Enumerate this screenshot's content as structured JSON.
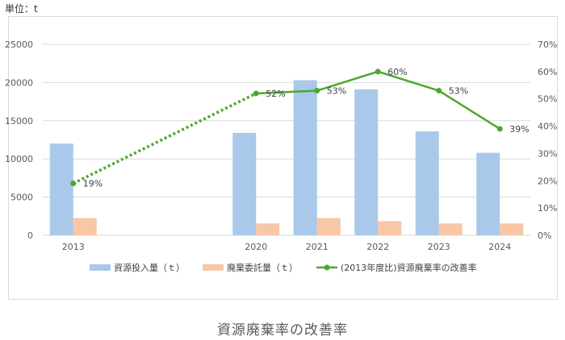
{
  "unit_label": "単位：t",
  "caption": "資源廃棄率の改善率",
  "colors": {
    "input": "#a9c8ea",
    "waste": "#f8c7a7",
    "rate": "#4ea72e",
    "grid": "#d9d9d9"
  },
  "chart_data": {
    "type": "bar",
    "categories": [
      "2013",
      "",
      "",
      "2020",
      "2021",
      "2022",
      "2023",
      "2024"
    ],
    "series": [
      {
        "name": "資源投入量（ｔ）",
        "kind": "bar",
        "axis": "left",
        "values": [
          12000,
          null,
          null,
          13400,
          20300,
          19100,
          13600,
          10800
        ]
      },
      {
        "name": "廃棄委託量（ｔ）",
        "kind": "bar",
        "axis": "left",
        "values": [
          2250,
          null,
          null,
          1550,
          2250,
          1850,
          1550,
          1550
        ]
      },
      {
        "name": "(2013年度比)資源廃棄率の改善率",
        "kind": "line",
        "axis": "right",
        "values": [
          0.19,
          null,
          null,
          0.52,
          0.53,
          0.6,
          0.53,
          0.39
        ],
        "labels": [
          "19%",
          "",
          "",
          "52%",
          "53%",
          "60%",
          "53%",
          "39%"
        ]
      }
    ],
    "y_left": {
      "min": 0,
      "max": 25000,
      "ticks": [
        "0",
        "5000",
        "10000",
        "15000",
        "20000",
        "25000"
      ]
    },
    "y_right": {
      "min": 0,
      "max": 0.7,
      "ticks": [
        "0%",
        "10%",
        "20%",
        "30%",
        "40%",
        "50%",
        "60%",
        "70%"
      ]
    },
    "grid": true,
    "legend": "bottom"
  }
}
